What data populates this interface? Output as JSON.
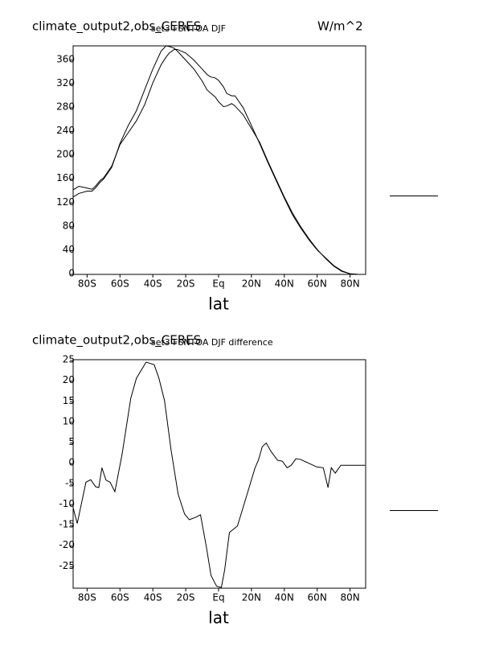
{
  "chart_data": [
    {
      "type": "line",
      "title": "climate_output2,obs_CERES",
      "subtitle": "set3 FSNTOA DJF",
      "units": "W/m^2",
      "x_label": "lat",
      "x": [
        -88.5,
        -85,
        -80,
        -77,
        -75,
        -72,
        -70,
        -65,
        -60,
        -55,
        -50,
        -45,
        -40,
        -35,
        -32,
        -30,
        -27,
        -25,
        -20,
        -15,
        -10,
        -7,
        -5,
        -2,
        0,
        3,
        5,
        8,
        10,
        15,
        20,
        25,
        30,
        35,
        40,
        45,
        50,
        55,
        60,
        65,
        70,
        75,
        80,
        85,
        89
      ],
      "series": [
        {
          "color": "#000000",
          "values": [
            130,
            136,
            140,
            140,
            145,
            155,
            160,
            180,
            220,
            250,
            275,
            310,
            345,
            375,
            384,
            383,
            380,
            375,
            360,
            345,
            325,
            310,
            305,
            298,
            290,
            282,
            283,
            287,
            283,
            268,
            245,
            222,
            190,
            160,
            130,
            103,
            80,
            60,
            42,
            27,
            14,
            5,
            1,
            0,
            0
          ]
        },
        {
          "color": "#000000",
          "values": [
            142,
            148,
            145,
            143,
            148,
            158,
            162,
            182,
            218,
            238,
            258,
            285,
            322,
            352,
            365,
            372,
            378,
            378,
            372,
            360,
            345,
            336,
            332,
            330,
            326,
            315,
            304,
            300,
            300,
            280,
            250,
            220,
            188,
            158,
            128,
            100,
            78,
            58,
            41,
            28,
            15,
            6,
            1,
            0,
            0
          ]
        }
      ],
      "xlim": [
        -88.5,
        89.5
      ],
      "ylim": [
        0,
        384
      ],
      "xticks": [
        {
          "value": -80,
          "label": "80S"
        },
        {
          "value": -60,
          "label": "60S"
        },
        {
          "value": -40,
          "label": "40S"
        },
        {
          "value": -20,
          "label": "20S"
        },
        {
          "value": 0,
          "label": "Eq"
        },
        {
          "value": 20,
          "label": "20N"
        },
        {
          "value": 40,
          "label": "40N"
        },
        {
          "value": 60,
          "label": "60N"
        },
        {
          "value": 80,
          "label": "80N"
        }
      ],
      "yticks": [
        0,
        40,
        80,
        120,
        160,
        200,
        240,
        280,
        320,
        360
      ]
    },
    {
      "type": "line",
      "title": "climate_output2,obs_CERES",
      "subtitle": "set3 FSNTOA DJF difference",
      "x_label": "lat",
      "x": [
        -88.5,
        -86,
        -80.7,
        -77.8,
        -74.8,
        -72.9,
        -71,
        -68.5,
        -66,
        -63.1,
        -58.7,
        -53.4,
        -50,
        -47,
        -44.1,
        -39.2,
        -36.3,
        -32.9,
        -28.9,
        -24.6,
        -20.7,
        -17.8,
        -13.9,
        -11,
        -7.5,
        -4.6,
        -1.2,
        1.7,
        3.7,
        6.6,
        11.5,
        16.4,
        22.2,
        24.2,
        26.6,
        29,
        32,
        35.9,
        38.8,
        41.7,
        44.2,
        47.1,
        50,
        55.4,
        59.8,
        63.7,
        66.6,
        68.6,
        71,
        74.4,
        89.1
      ],
      "series": [
        {
          "color": "#000000",
          "values": [
            -10.7,
            -14.5,
            -4.5,
            -3.9,
            -5.6,
            -5.8,
            -1,
            -4,
            -4.5,
            -6.8,
            2.3,
            15.9,
            20.7,
            22.7,
            24.6,
            24,
            20.7,
            15.3,
            3.3,
            -7.4,
            -12.2,
            -13.6,
            -13,
            -12.4,
            -20,
            -27.1,
            -29.7,
            -30,
            -25.8,
            -16.7,
            -15.1,
            -8.7,
            -1,
            0.8,
            4.1,
            5,
            2.9,
            0.8,
            0.6,
            -1,
            -0.4,
            1.2,
            1,
            0,
            -0.8,
            -1,
            -5.8,
            -1,
            -2.3,
            -0.4,
            -0.4
          ]
        }
      ],
      "xlim": [
        -88.5,
        89.5
      ],
      "ylim": [
        -30.2,
        25.2
      ],
      "xticks": [
        {
          "value": -80,
          "label": "80S"
        },
        {
          "value": -60,
          "label": "60S"
        },
        {
          "value": -40,
          "label": "40S"
        },
        {
          "value": -20,
          "label": "20S"
        },
        {
          "value": 0,
          "label": "Eq"
        },
        {
          "value": 20,
          "label": "20N"
        },
        {
          "value": 40,
          "label": "40N"
        },
        {
          "value": 60,
          "label": "60N"
        },
        {
          "value": 80,
          "label": "80N"
        }
      ],
      "yticks": [
        -25,
        -20,
        -15,
        -10,
        -5,
        0,
        5,
        10,
        15,
        20,
        25
      ]
    }
  ]
}
